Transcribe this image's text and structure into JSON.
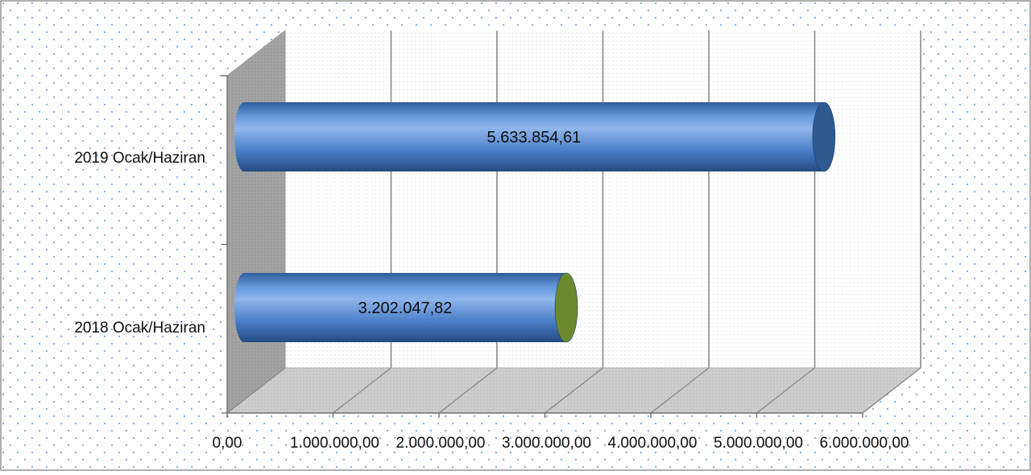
{
  "chart_data": {
    "type": "bar",
    "orientation": "horizontal",
    "style": "3d-cylinder",
    "title": "",
    "xlabel": "",
    "ylabel": "",
    "categories": [
      "2018 Ocak/Haziran",
      "2019 Ocak/Haziran"
    ],
    "values": [
      3202047.82,
      5633854.61
    ],
    "value_labels": [
      "3.202.047,82",
      "5.633.854,61"
    ],
    "xlim": [
      0,
      6000000
    ],
    "x_ticks": [
      0,
      1000000,
      2000000,
      3000000,
      4000000,
      5000000,
      6000000
    ],
    "x_tick_labels": [
      "0,00",
      "1.000.000,00",
      "2.000.000,00",
      "3.000.000,00",
      "4.000.000,00",
      "5.000.000,00",
      "6.000.000,00"
    ],
    "grid": true,
    "legend": "none",
    "colors": {
      "bar_body": "#4a7ec8",
      "bar_highlight": "#8fb6ec",
      "bar_shadow": "#2a4f86",
      "cap_2019": "#2e5a92",
      "cap_2018": "#6b8a2e",
      "wall": "#a8a8a8",
      "floor": "#c9c9c9",
      "background_dots": "#8fb0d8",
      "border": "#7a7a7a"
    }
  }
}
